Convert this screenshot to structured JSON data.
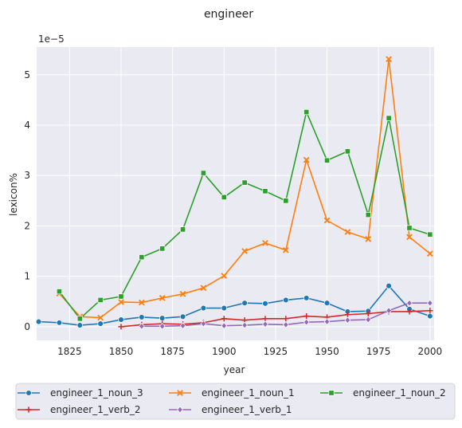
{
  "chart_data": {
    "type": "line",
    "title": "engineer",
    "xlabel": "year",
    "ylabel": "lexicon%",
    "offset_label": "1e−5",
    "xlim": [
      1809,
      2002
    ],
    "ylim": [
      -0.27,
      5.55
    ],
    "xticks": [
      1825,
      1850,
      1875,
      1900,
      1925,
      1950,
      1975,
      2000
    ],
    "yticks": [
      0,
      1,
      2,
      3,
      4,
      5
    ],
    "grid": true,
    "background": "#eaeaf2",
    "legend_position": "bottom",
    "series": [
      {
        "name": "engineer_1_noun_3",
        "color": "#1f77b4",
        "marker": "circle",
        "x": [
          1810,
          1820,
          1830,
          1840,
          1850,
          1860,
          1870,
          1880,
          1890,
          1900,
          1910,
          1920,
          1930,
          1940,
          1950,
          1960,
          1970,
          1980,
          1990,
          2000
        ],
        "y": [
          0.1,
          0.08,
          0.03,
          0.06,
          0.14,
          0.19,
          0.17,
          0.2,
          0.37,
          0.37,
          0.47,
          0.46,
          0.53,
          0.57,
          0.47,
          0.3,
          0.31,
          0.81,
          0.35,
          0.21
        ]
      },
      {
        "name": "engineer_1_noun_1",
        "color": "#ff7f0e",
        "marker": "x",
        "x": [
          1820,
          1830,
          1840,
          1850,
          1860,
          1870,
          1880,
          1890,
          1900,
          1910,
          1920,
          1930,
          1940,
          1950,
          1960,
          1970,
          1980,
          1990,
          2000
        ],
        "y": [
          0.66,
          0.2,
          0.18,
          0.49,
          0.48,
          0.57,
          0.65,
          0.77,
          1.01,
          1.5,
          1.66,
          1.52,
          3.31,
          2.11,
          1.88,
          1.74,
          5.31,
          1.78,
          1.45
        ]
      },
      {
        "name": "engineer_1_noun_2",
        "color": "#2ca02c",
        "marker": "square",
        "x": [
          1820,
          1830,
          1840,
          1850,
          1860,
          1870,
          1880,
          1890,
          1900,
          1910,
          1920,
          1930,
          1940,
          1950,
          1960,
          1970,
          1980,
          1990,
          2000
        ],
        "y": [
          0.7,
          0.16,
          0.53,
          0.6,
          1.38,
          1.55,
          1.93,
          3.05,
          2.57,
          2.86,
          2.69,
          2.5,
          4.26,
          3.3,
          3.48,
          2.22,
          4.14,
          1.96,
          1.83
        ]
      },
      {
        "name": "engineer_1_verb_2",
        "color": "#d62728",
        "marker": "plus",
        "x": [
          1850,
          1860,
          1870,
          1880,
          1890,
          1900,
          1910,
          1920,
          1930,
          1940,
          1950,
          1960,
          1970,
          1980,
          1990,
          2000
        ],
        "y": [
          0.0,
          0.04,
          0.06,
          0.05,
          0.08,
          0.16,
          0.13,
          0.16,
          0.16,
          0.21,
          0.19,
          0.24,
          0.26,
          0.3,
          0.3,
          0.32
        ]
      },
      {
        "name": "engineer_1_verb_1",
        "color": "#9467bd",
        "marker": "diamond",
        "x": [
          1860,
          1870,
          1880,
          1890,
          1900,
          1910,
          1920,
          1930,
          1940,
          1950,
          1960,
          1970,
          1980,
          1990,
          2000
        ],
        "y": [
          0.01,
          0.01,
          0.02,
          0.06,
          0.02,
          0.03,
          0.05,
          0.04,
          0.09,
          0.1,
          0.13,
          0.14,
          0.32,
          0.47,
          0.47
        ]
      }
    ]
  }
}
